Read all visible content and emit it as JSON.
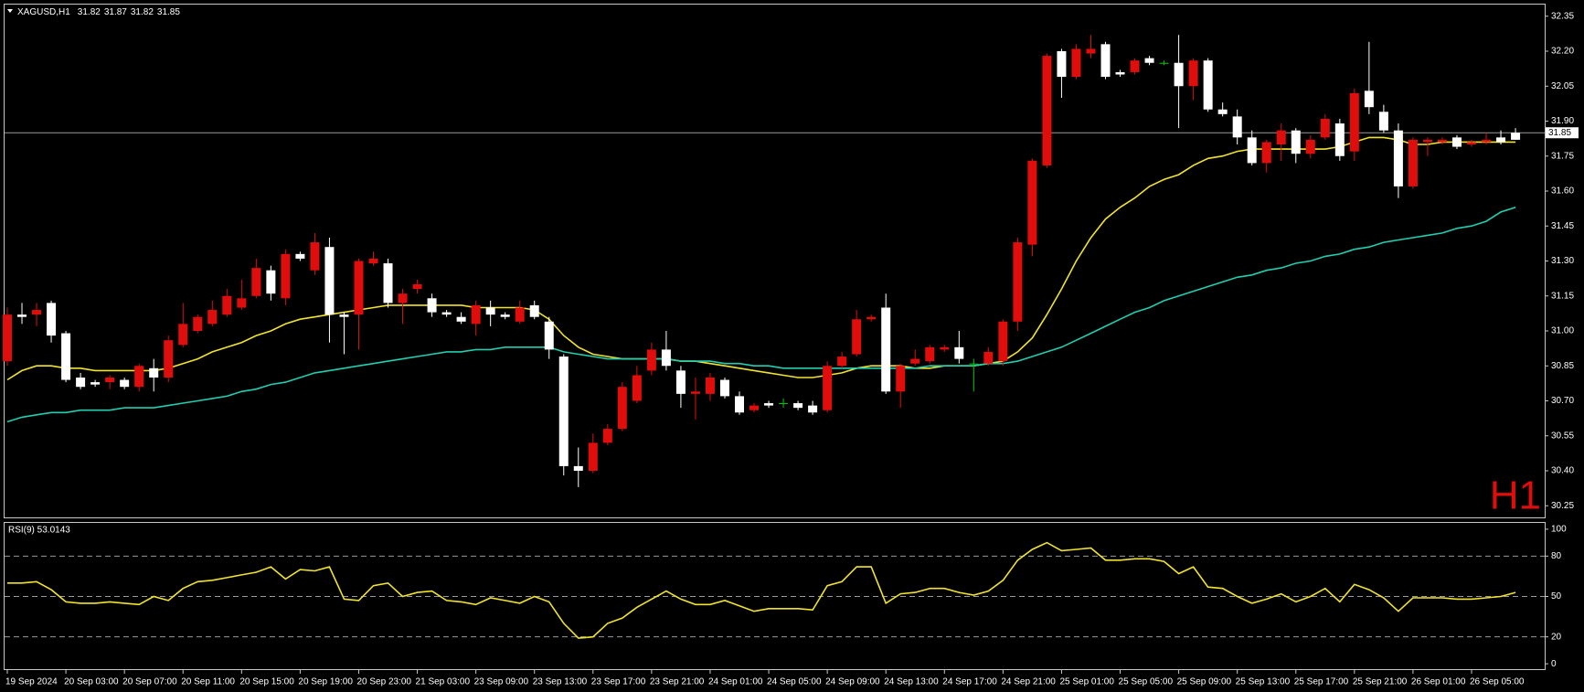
{
  "chart_data": [
    {
      "type": "candlestick",
      "title": "XAGUSD,H1",
      "quote": [
        31.82,
        31.87,
        31.82,
        31.85
      ],
      "timeframe_label": "H1",
      "categories": [
        "19 Sep 2024",
        null,
        null,
        null,
        "20 Sep 03:00",
        null,
        null,
        null,
        "20 Sep 07:00",
        null,
        null,
        null,
        "20 Sep 11:00",
        null,
        null,
        null,
        "20 Sep 15:00",
        null,
        null,
        null,
        "20 Sep 19:00",
        null,
        null,
        null,
        "20 Sep 23:00",
        null,
        null,
        null,
        "21 Sep 03:00",
        null,
        null,
        null,
        "23 Sep 09:00",
        null,
        null,
        null,
        "23 Sep 13:00",
        null,
        null,
        null,
        "23 Sep 17:00",
        null,
        null,
        null,
        "23 Sep 21:00",
        null,
        null,
        null,
        "24 Sep 01:00",
        null,
        null,
        null,
        "24 Sep 05:00",
        null,
        null,
        null,
        "24 Sep 09:00",
        null,
        null,
        null,
        "24 Sep 13:00",
        null,
        null,
        null,
        "24 Sep 17:00",
        null,
        null,
        null,
        "24 Sep 21:00",
        null,
        null,
        null,
        "25 Sep 01:00",
        null,
        null,
        null,
        "25 Sep 05:00",
        null,
        null,
        null,
        "25 Sep 09:00",
        null,
        null,
        null,
        "25 Sep 13:00",
        null,
        null,
        null,
        "25 Sep 17:00",
        null,
        null,
        null,
        "25 Sep 21:00",
        null,
        null,
        null,
        "26 Sep 01:00",
        null,
        null,
        null,
        "26 Sep 05:00",
        null,
        null,
        null
      ],
      "open": [
        31.07,
        31.06,
        31.09,
        30.98,
        30.79,
        30.76,
        30.77,
        30.8,
        30.76,
        30.85,
        30.8,
        30.96,
        31.03,
        31.06,
        31.09,
        31.15,
        31.14,
        31.27,
        31.16,
        31.33,
        31.31,
        31.38,
        31.07,
        31.06,
        31.3,
        31.31,
        31.12,
        31.16,
        31.2,
        31.08,
        31.07,
        31.04,
        31.11,
        31.07,
        31.06,
        31.1,
        31.06,
        30.92,
        30.42,
        30.4,
        30.52,
        30.58,
        30.76,
        30.81,
        30.92,
        30.85,
        30.73,
        30.74,
        30.8,
        30.72,
        30.65,
        30.68,
        30.68,
        30.69,
        30.67,
        30.65,
        30.85,
        30.89,
        31.05,
        31.06,
        30.74,
        30.85,
        30.88,
        30.93,
        30.93,
        30.88,
        30.86,
        30.91,
        31.04,
        31.38,
        31.73,
        32.18,
        32.09,
        32.21,
        32.21,
        32.09,
        32.1,
        32.16,
        32.15,
        32.15,
        32.05,
        32.16,
        31.95,
        31.93,
        31.83,
        31.72,
        31.81,
        31.86,
        31.76,
        31.82,
        31.91,
        31.75,
        32.02,
        31.96,
        31.86,
        31.62,
        31.82,
        31.82,
        31.82,
        31.79,
        31.81,
        31.82,
        31.81,
        31.82
      ],
      "high": [
        31.1,
        31.12,
        31.12,
        31.13,
        31.0,
        30.82,
        30.79,
        30.81,
        30.8,
        30.86,
        30.88,
        30.98,
        31.12,
        31.07,
        31.13,
        31.18,
        31.22,
        31.31,
        31.28,
        31.35,
        31.34,
        31.42,
        31.4,
        31.08,
        31.31,
        31.34,
        31.31,
        31.18,
        31.22,
        31.16,
        31.09,
        31.08,
        31.13,
        31.13,
        31.08,
        31.13,
        31.13,
        31.06,
        30.9,
        30.5,
        30.56,
        30.6,
        30.78,
        30.85,
        30.95,
        31.0,
        30.85,
        30.8,
        30.82,
        30.8,
        30.74,
        30.69,
        30.7,
        30.71,
        30.7,
        30.7,
        30.87,
        30.91,
        31.09,
        31.07,
        31.16,
        30.86,
        30.92,
        30.94,
        30.94,
        31.0,
        30.88,
        30.93,
        31.05,
        31.4,
        31.74,
        32.19,
        32.21,
        32.23,
        32.27,
        32.24,
        32.12,
        32.17,
        32.18,
        32.16,
        32.27,
        32.17,
        32.17,
        31.98,
        31.95,
        31.86,
        31.82,
        31.89,
        31.87,
        31.84,
        31.93,
        31.91,
        32.04,
        32.24,
        31.97,
        31.89,
        31.83,
        31.83,
        31.83,
        31.84,
        31.82,
        31.85,
        31.86,
        31.87
      ],
      "low": [
        30.85,
        31.03,
        31.02,
        30.95,
        30.78,
        30.75,
        30.76,
        30.75,
        30.75,
        30.74,
        30.74,
        30.78,
        30.93,
        30.99,
        31.02,
        31.06,
        31.09,
        31.14,
        31.13,
        31.11,
        31.3,
        31.24,
        30.95,
        30.9,
        30.92,
        31.28,
        31.1,
        31.03,
        31.16,
        31.06,
        31.06,
        31.03,
        30.98,
        31.02,
        31.05,
        31.03,
        31.05,
        30.88,
        30.38,
        30.33,
        30.39,
        30.51,
        30.57,
        30.69,
        30.81,
        30.83,
        30.67,
        30.62,
        30.7,
        30.71,
        30.64,
        30.65,
        30.67,
        30.67,
        30.66,
        30.64,
        30.65,
        30.84,
        30.89,
        31.04,
        30.73,
        30.67,
        30.85,
        30.86,
        30.91,
        30.86,
        30.74,
        30.85,
        30.85,
        31.0,
        31.32,
        31.7,
        32.0,
        32.08,
        32.17,
        32.08,
        32.09,
        32.1,
        32.14,
        32.14,
        31.87,
        31.99,
        31.94,
        31.92,
        31.8,
        31.71,
        31.68,
        31.73,
        31.72,
        31.74,
        31.82,
        31.73,
        31.73,
        31.93,
        31.85,
        31.57,
        31.61,
        31.75,
        31.8,
        31.78,
        31.79,
        31.8,
        31.8,
        31.82
      ],
      "close": [
        30.87,
        31.07,
        31.07,
        31.12,
        30.99,
        30.8,
        30.78,
        30.78,
        30.79,
        30.76,
        30.84,
        30.8,
        30.94,
        31.0,
        31.03,
        31.07,
        31.1,
        31.15,
        31.26,
        31.14,
        31.33,
        31.26,
        31.36,
        31.07,
        31.07,
        31.29,
        31.29,
        31.12,
        31.18,
        31.14,
        31.08,
        31.06,
        31.03,
        31.1,
        31.07,
        31.04,
        31.11,
        31.04,
        30.89,
        30.42,
        30.4,
        30.52,
        30.58,
        30.7,
        30.83,
        30.92,
        30.83,
        30.73,
        30.73,
        30.79,
        30.72,
        30.66,
        30.69,
        30.69,
        30.69,
        30.68,
        30.66,
        30.85,
        30.9,
        31.05,
        31.1,
        30.74,
        30.86,
        30.87,
        30.92,
        30.93,
        30.86,
        30.86,
        30.87,
        31.04,
        31.37,
        31.71,
        32.2,
        32.09,
        32.19,
        32.23,
        32.11,
        32.11,
        32.17,
        32.15,
        32.15,
        32.05,
        32.16,
        31.95,
        31.92,
        31.83,
        31.72,
        31.8,
        31.86,
        31.76,
        31.83,
        31.89,
        31.77,
        32.03,
        31.94,
        31.86,
        31.62,
        31.81,
        31.81,
        31.83,
        31.8,
        31.81,
        31.83,
        31.85
      ],
      "up_color": "#ffffff",
      "down_color": "#e00d0d",
      "doji_color": "#00c800",
      "series": [
        {
          "color": "#f2e42c",
          "values": [
            30.79,
            30.83,
            30.85,
            30.85,
            30.84,
            30.84,
            30.83,
            30.83,
            30.83,
            30.83,
            30.83,
            30.84,
            30.86,
            30.88,
            30.91,
            30.93,
            30.95,
            30.98,
            31.0,
            31.03,
            31.05,
            31.06,
            31.07,
            31.08,
            31.09,
            31.1,
            31.11,
            31.11,
            31.11,
            31.11,
            31.11,
            31.11,
            31.1,
            31.1,
            31.1,
            31.1,
            31.09,
            31.05,
            30.98,
            30.93,
            30.9,
            30.89,
            30.88,
            30.88,
            30.88,
            30.88,
            30.87,
            30.87,
            30.86,
            30.85,
            30.84,
            30.83,
            30.82,
            30.81,
            30.8,
            30.8,
            30.81,
            30.82,
            30.84,
            30.85,
            30.85,
            30.85,
            30.84,
            30.84,
            30.85,
            30.85,
            30.85,
            30.86,
            30.87,
            30.91,
            30.97,
            31.07,
            31.18,
            31.3,
            31.4,
            31.48,
            31.53,
            31.57,
            31.62,
            31.65,
            31.67,
            31.71,
            31.74,
            31.75,
            31.77,
            31.78,
            31.78,
            31.78,
            31.78,
            31.78,
            31.78,
            31.79,
            31.81,
            31.83,
            31.83,
            31.82,
            31.8,
            31.8,
            31.81,
            31.81,
            31.81,
            31.81,
            31.81,
            31.81
          ]
        },
        {
          "color": "#1fcfb0",
          "values": [
            30.61,
            30.63,
            30.64,
            30.65,
            30.65,
            30.66,
            30.66,
            30.66,
            30.67,
            30.67,
            30.67,
            30.68,
            30.69,
            30.7,
            30.71,
            30.72,
            30.74,
            30.75,
            30.77,
            30.78,
            30.8,
            30.82,
            30.83,
            30.84,
            30.85,
            30.86,
            30.87,
            30.88,
            30.89,
            30.9,
            30.91,
            30.91,
            30.92,
            30.92,
            30.93,
            30.93,
            30.93,
            30.93,
            30.91,
            30.9,
            30.89,
            30.88,
            30.88,
            30.88,
            30.88,
            30.88,
            30.87,
            30.87,
            30.87,
            30.86,
            30.86,
            30.85,
            30.85,
            30.84,
            30.84,
            30.84,
            30.84,
            30.84,
            30.84,
            30.84,
            30.84,
            30.84,
            30.84,
            30.85,
            30.85,
            30.85,
            30.85,
            30.86,
            30.86,
            30.87,
            30.89,
            30.91,
            30.93,
            30.96,
            30.99,
            31.02,
            31.05,
            31.08,
            31.1,
            31.13,
            31.15,
            31.17,
            31.19,
            31.21,
            31.23,
            31.24,
            31.26,
            31.27,
            31.29,
            31.3,
            31.32,
            31.33,
            31.35,
            31.36,
            31.38,
            31.39,
            31.4,
            31.41,
            31.42,
            31.44,
            31.45,
            31.47,
            31.51,
            31.53
          ]
        }
      ],
      "current_price": 31.85,
      "current_price_color": "#9a9a9a",
      "ylim": [
        30.2,
        32.4
      ],
      "yticks": [
        32.35,
        {
          "value": 32.2,
          "label": "32.20"
        },
        32.05,
        {
          "value": 31.9,
          "label": "31.90"
        },
        31.75,
        {
          "value": 31.6,
          "label": "31.60"
        },
        31.45,
        {
          "value": 31.3,
          "label": "31.30"
        },
        31.15,
        {
          "value": 31.0,
          "label": "31.00"
        },
        30.85,
        {
          "value": 30.7,
          "label": "30.70"
        },
        30.55,
        {
          "value": 30.4,
          "label": "30.40"
        },
        30.25
      ]
    },
    {
      "type": "line",
      "title": "RSI(9) 53.0143",
      "color": "#f2e42c",
      "values": [
        60,
        60,
        61,
        55,
        46,
        45,
        45,
        46,
        45,
        44,
        50,
        47,
        56,
        61,
        62,
        64,
        66,
        68,
        72,
        63,
        70,
        69,
        72,
        48,
        47,
        58,
        60,
        50,
        53,
        54,
        47,
        46,
        44,
        49,
        47,
        45,
        50,
        46,
        30,
        19,
        20,
        30,
        34,
        42,
        48,
        54,
        48,
        44,
        44,
        47,
        43,
        39,
        41,
        41,
        41,
        40,
        58,
        61,
        72,
        72,
        45,
        52,
        53,
        56,
        56,
        53,
        51,
        54,
        62,
        77,
        85,
        90,
        84,
        85,
        86,
        77,
        77,
        78,
        78,
        76,
        67,
        72,
        57,
        56,
        50,
        45,
        48,
        52,
        46,
        50,
        56,
        46,
        59,
        55,
        49,
        39,
        49,
        49,
        49,
        48,
        48,
        49,
        50,
        53
      ],
      "levels": [
        80,
        50,
        20
      ],
      "ylim": [
        -4,
        104
      ],
      "yticks": [
        100,
        80,
        50,
        20,
        0
      ]
    }
  ]
}
